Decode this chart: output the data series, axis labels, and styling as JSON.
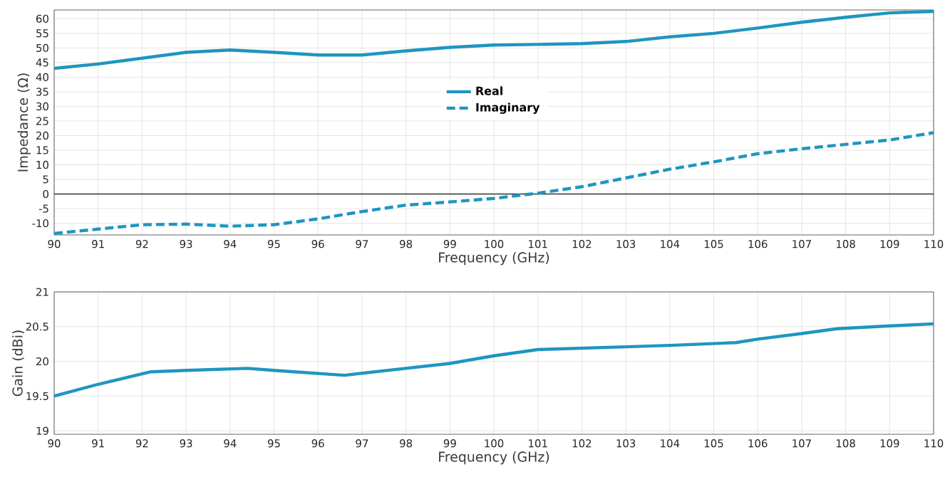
{
  "chart_data": [
    {
      "type": "line",
      "xlabel": "Frequency (GHz)",
      "ylabel": "Impedance (Ω)",
      "xlim": [
        90,
        110
      ],
      "ylim": [
        -14,
        63
      ],
      "xticks": [
        90,
        91,
        92,
        93,
        94,
        95,
        96,
        97,
        98,
        99,
        100,
        101,
        102,
        103,
        104,
        105,
        106,
        107,
        108,
        109,
        110
      ],
      "yticks": [
        -10,
        -5,
        0,
        5,
        10,
        15,
        20,
        25,
        30,
        35,
        40,
        45,
        50,
        55,
        60
      ],
      "x": [
        90,
        91,
        92,
        93,
        94,
        95,
        96,
        97,
        98,
        99,
        100,
        101,
        102,
        103,
        104,
        105,
        106,
        107,
        108,
        109,
        110
      ],
      "series": [
        {
          "name": "Real",
          "color": "#1f95c0",
          "line_style": "solid",
          "values": [
            43,
            44.5,
            46.5,
            48.5,
            49.3,
            48.5,
            47.6,
            47.6,
            49,
            50.2,
            51,
            51.2,
            51.5,
            52.2,
            53.8,
            55,
            56.8,
            58.8,
            60.5,
            62,
            62.5
          ]
        },
        {
          "name": "Imaginary",
          "color": "#1f95c0",
          "line_style": "dashed",
          "values": [
            -13.5,
            -12,
            -10.5,
            -10.3,
            -11,
            -10.5,
            -8.5,
            -6,
            -3.8,
            -2.7,
            -1.5,
            0.3,
            2.5,
            5.5,
            8.5,
            11,
            13.8,
            15.5,
            17,
            18.5,
            21
          ]
        }
      ],
      "ref_lines": [
        {
          "axis": "y",
          "value": 0,
          "color": "#333333"
        }
      ],
      "grid": true,
      "legend": "center",
      "marker": "none"
    },
    {
      "type": "line",
      "xlabel": "Frequency (GHz)",
      "ylabel": "Gain (dBi)",
      "xlim": [
        90,
        110
      ],
      "ylim": [
        18.95,
        21
      ],
      "xticks": [
        90,
        91,
        92,
        93,
        94,
        95,
        96,
        97,
        98,
        99,
        100,
        101,
        102,
        103,
        104,
        105,
        106,
        107,
        108,
        109,
        110
      ],
      "yticks": [
        19,
        19.5,
        20,
        20.5,
        21
      ],
      "x": [
        90,
        91,
        92.2,
        93,
        94.4,
        95,
        96.6,
        98,
        99,
        100,
        101,
        102,
        103,
        104,
        105.5,
        106,
        107,
        107.8,
        109,
        110
      ],
      "series": [
        {
          "color": "#1f95c0",
          "line_style": "solid",
          "values": [
            19.5,
            19.67,
            19.85,
            19.87,
            19.9,
            19.87,
            19.8,
            19.9,
            19.97,
            20.08,
            20.17,
            20.19,
            20.21,
            20.23,
            20.27,
            20.32,
            20.4,
            20.47,
            20.51,
            20.54
          ]
        }
      ],
      "grid": true,
      "legend": false,
      "marker": "none"
    }
  ]
}
